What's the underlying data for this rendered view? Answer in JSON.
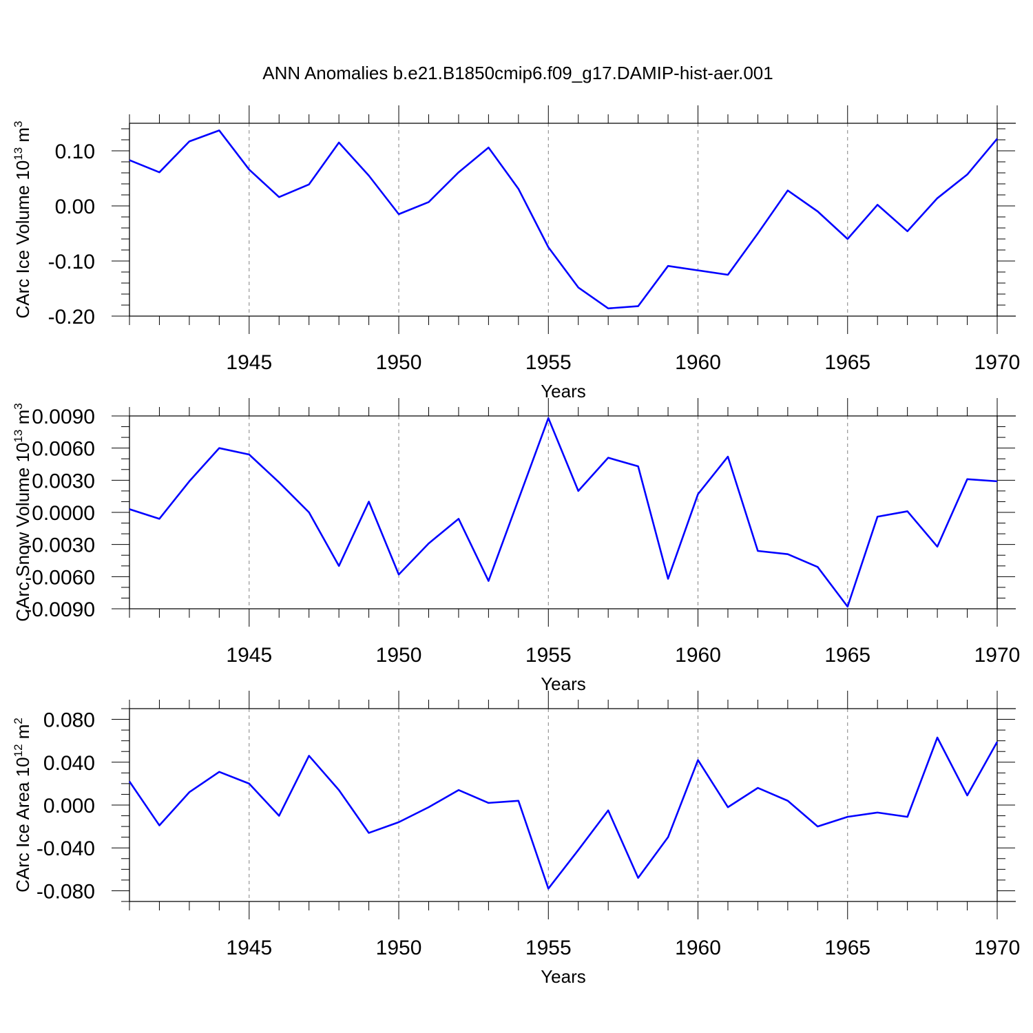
{
  "figure": {
    "title": "ANN Anomalies b.e21.B1850cmip6.f09_g17.DAMIP-hist-aer.001"
  },
  "colors": {
    "series": "#0000ff",
    "axis": "#000000",
    "grid": "#808080",
    "background": "#ffffff"
  },
  "chart_data": [
    {
      "type": "line",
      "ylabel": {
        "main": "CArc Ice Volume 10",
        "sup": "13",
        "unit": " m",
        "unit_sup": "3"
      },
      "xlabel": "Years",
      "xlim": [
        1941,
        1970
      ],
      "ylim": [
        -0.2,
        0.15
      ],
      "xticks": [
        1945,
        1950,
        1955,
        1960,
        1965,
        1970
      ],
      "xtick_labels": [
        "1945",
        "1950",
        "1955",
        "1960",
        "1965",
        "1970"
      ],
      "yticks": [
        -0.2,
        -0.1,
        0.0,
        0.1
      ],
      "ytick_labels": [
        "-0.20",
        "-0.10",
        "0.00",
        "0.10"
      ],
      "yminor_step": 0.02,
      "grid": "vertical dashed at major x ticks",
      "x": [
        1941,
        1942,
        1943,
        1944,
        1945,
        1946,
        1947,
        1948,
        1949,
        1950,
        1951,
        1952,
        1953,
        1954,
        1955,
        1956,
        1957,
        1958,
        1959,
        1960,
        1961,
        1962,
        1963,
        1964,
        1965,
        1966,
        1967,
        1968,
        1969,
        1970
      ],
      "values": [
        0.083,
        0.061,
        0.117,
        0.137,
        0.066,
        0.016,
        0.039,
        0.115,
        0.055,
        -0.015,
        0.007,
        0.061,
        0.106,
        0.031,
        -0.075,
        -0.148,
        -0.186,
        -0.182,
        -0.109,
        -0.117,
        -0.125,
        -0.05,
        0.028,
        -0.01,
        -0.06,
        0.002,
        -0.046,
        0.014,
        0.057,
        0.122
      ]
    },
    {
      "type": "line",
      "ylabel": {
        "main": "CArc Snow Volume 10",
        "sup": "13",
        "unit": " m",
        "unit_sup": "3"
      },
      "xlabel": "Years",
      "xlim": [
        1941,
        1970
      ],
      "ylim": [
        -0.009,
        0.009
      ],
      "xticks": [
        1945,
        1950,
        1955,
        1960,
        1965,
        1970
      ],
      "xtick_labels": [
        "1945",
        "1950",
        "1955",
        "1960",
        "1965",
        "1970"
      ],
      "yticks": [
        -0.009,
        -0.006,
        -0.003,
        0.0,
        0.003,
        0.006,
        0.009
      ],
      "ytick_labels": [
        "-0.0090",
        "-0.0060",
        "-0.0030",
        "0.0000",
        "0.0030",
        "0.0060",
        "0.0090"
      ],
      "yminor_step": 0.001,
      "grid": "vertical dashed at major x ticks",
      "x": [
        1941,
        1942,
        1943,
        1944,
        1945,
        1946,
        1947,
        1948,
        1949,
        1950,
        1951,
        1952,
        1953,
        1954,
        1955,
        1956,
        1957,
        1958,
        1959,
        1960,
        1961,
        1962,
        1963,
        1964,
        1965,
        1966,
        1967,
        1968,
        1969,
        1970
      ],
      "values": [
        0.0003,
        -0.0006,
        0.0029,
        0.006,
        0.0054,
        0.0028,
        0.0,
        -0.005,
        0.001,
        -0.0058,
        -0.0029,
        -0.0006,
        -0.0064,
        0.0012,
        0.0088,
        0.002,
        0.0051,
        0.0043,
        -0.0062,
        0.0017,
        0.0052,
        -0.0036,
        -0.0039,
        -0.0051,
        -0.0088,
        -0.0004,
        0.0001,
        -0.0032,
        0.0031,
        0.0029
      ]
    },
    {
      "type": "line",
      "ylabel": {
        "main": "CArc Ice Area 10",
        "sup": "12",
        "unit": " m",
        "unit_sup": "2"
      },
      "xlabel": "Years",
      "xlim": [
        1941,
        1970
      ],
      "ylim": [
        -0.09,
        0.09
      ],
      "xticks": [
        1945,
        1950,
        1955,
        1960,
        1965,
        1970
      ],
      "xtick_labels": [
        "1945",
        "1950",
        "1955",
        "1960",
        "1965",
        "1970"
      ],
      "yticks": [
        -0.08,
        -0.04,
        0.0,
        0.04,
        0.08
      ],
      "ytick_labels": [
        "-0.080",
        "-0.040",
        "0.000",
        "0.040",
        "0.080"
      ],
      "yminor_step": 0.01,
      "grid": "vertical dashed at major x ticks",
      "x": [
        1941,
        1942,
        1943,
        1944,
        1945,
        1946,
        1947,
        1948,
        1949,
        1950,
        1951,
        1952,
        1953,
        1954,
        1955,
        1956,
        1957,
        1958,
        1959,
        1960,
        1961,
        1962,
        1963,
        1964,
        1965,
        1966,
        1967,
        1968,
        1969,
        1970
      ],
      "values": [
        0.022,
        -0.019,
        0.012,
        0.031,
        0.02,
        -0.01,
        0.046,
        0.014,
        -0.026,
        -0.016,
        -0.002,
        0.014,
        0.002,
        0.004,
        -0.078,
        -0.042,
        -0.005,
        -0.068,
        -0.03,
        0.042,
        -0.002,
        0.016,
        0.004,
        -0.02,
        -0.011,
        -0.007,
        -0.011,
        0.063,
        0.009,
        0.059
      ]
    }
  ]
}
